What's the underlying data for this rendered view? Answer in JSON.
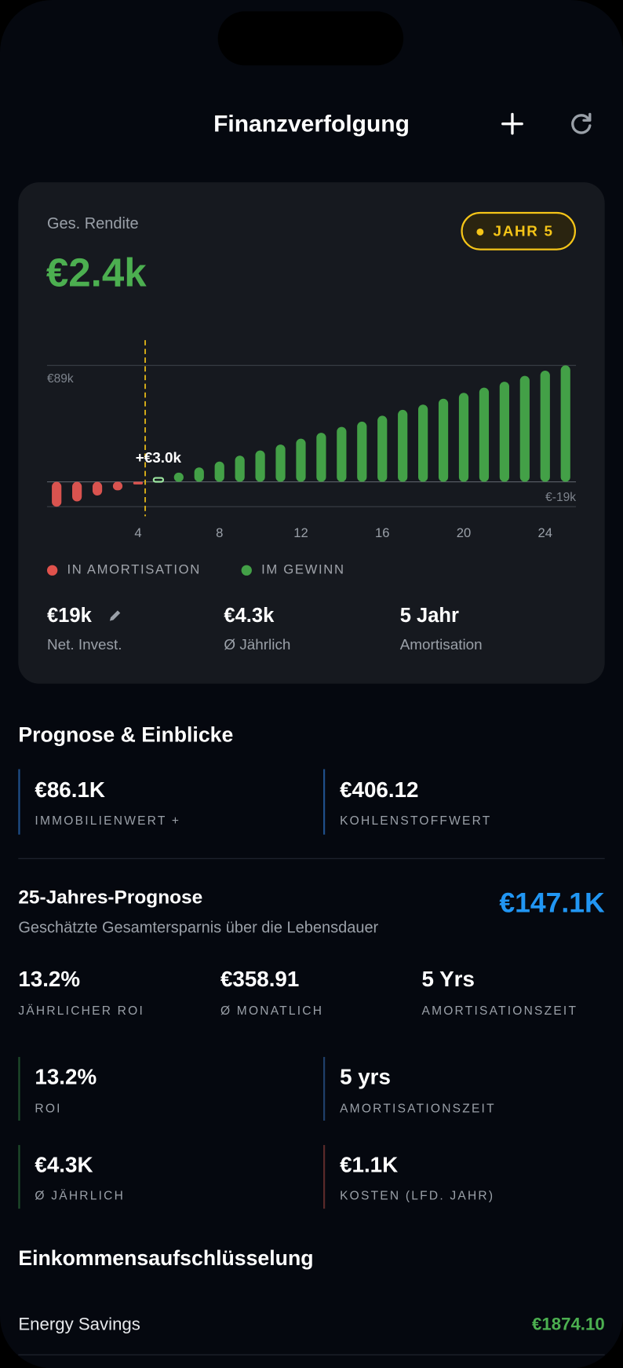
{
  "header": {
    "title": "Finanzverfolgung"
  },
  "card": {
    "label": "Ges. Rendite",
    "value": "€2.4k",
    "badge": "JAHR 5",
    "chart_data": {
      "type": "bar",
      "x": [
        0,
        1,
        2,
        3,
        4,
        5,
        6,
        7,
        8,
        9,
        10,
        11,
        12,
        13,
        14,
        15,
        16,
        17,
        18,
        19,
        20,
        21,
        22,
        23,
        24,
        25
      ],
      "values": [
        -19,
        -15,
        -10.5,
        -6.5,
        -2,
        3,
        7,
        11,
        15.5,
        20,
        24,
        28.5,
        33,
        37.5,
        42,
        46,
        50.5,
        55,
        59,
        63.5,
        68,
        72,
        76.5,
        81,
        85,
        89
      ],
      "negative_color": "#d9534f",
      "positive_color": "#43a047",
      "highlight_x": 5,
      "annotation": "+€3.0k",
      "xlim": [
        0,
        25
      ],
      "xticks": [
        4,
        8,
        12,
        16,
        20,
        24
      ],
      "ylim": [
        -19,
        89
      ],
      "yticks": [
        {
          "value": 89,
          "label": "€89k"
        },
        {
          "value": -19,
          "label": "€-19k"
        }
      ],
      "grid": true,
      "legend": [
        {
          "label": "IN AMORTISATION",
          "color": "#e0524c"
        },
        {
          "label": "IM GEWINN",
          "color": "#43a047"
        }
      ]
    },
    "stats": [
      {
        "value": "€19k",
        "label": "Net. Invest."
      },
      {
        "value": "€4.3k",
        "label": "Ø Jährlich"
      },
      {
        "value": "5 Jahr",
        "label": "Amortisation"
      }
    ]
  },
  "insights": {
    "title": "Prognose & Einblicke",
    "items": [
      {
        "value": "€86.1K",
        "label": "IMMOBILIENWERT +"
      },
      {
        "value": "€406.12",
        "label": "KOHLENSTOFFWERT"
      }
    ]
  },
  "forecast": {
    "title": "25-Jahres-Prognose",
    "subtitle": "Geschätzte Gesamtersparnis über die Lebensdauer",
    "total": "€147.1K",
    "stats": [
      {
        "value": "13.2%",
        "label": "JÄHRLICHER ROI"
      },
      {
        "value": "€358.91",
        "label": "Ø MONATLICH"
      },
      {
        "value": "5 Yrs",
        "label": "AMORTISATIONSZEIT"
      }
    ],
    "grid": [
      {
        "value": "13.2%",
        "label": "ROI"
      },
      {
        "value": "5 yrs",
        "label": "AMORTISATIONSZEIT"
      },
      {
        "value": "€4.3K",
        "label": "Ø JÄHRLICH"
      },
      {
        "value": "€1.1K",
        "label": "KOSTEN (LFD. JAHR)"
      }
    ]
  },
  "income": {
    "title": "Einkommensaufschlüsselung",
    "rows": [
      {
        "label": "Energy Savings",
        "value": "€1874.10"
      }
    ]
  }
}
